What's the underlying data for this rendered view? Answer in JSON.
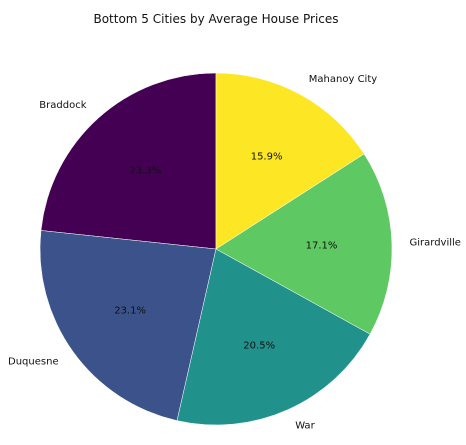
{
  "chart_data": {
    "type": "pie",
    "title": "Bottom 5 Cities by Average House Prices",
    "categories": [
      "Braddock",
      "Duquesne",
      "War",
      "Girardville",
      "Mahanoy City"
    ],
    "values": [
      23.3,
      23.1,
      20.5,
      17.1,
      15.9
    ],
    "percent_labels": [
      "23.3%",
      "23.1%",
      "20.5%",
      "17.1%",
      "15.9%"
    ],
    "colors": [
      "#440154",
      "#3b528b",
      "#21918c",
      "#5ec962",
      "#fde725"
    ],
    "start_angle_deg": 90,
    "direction": "counterclockwise",
    "legend": "none"
  }
}
